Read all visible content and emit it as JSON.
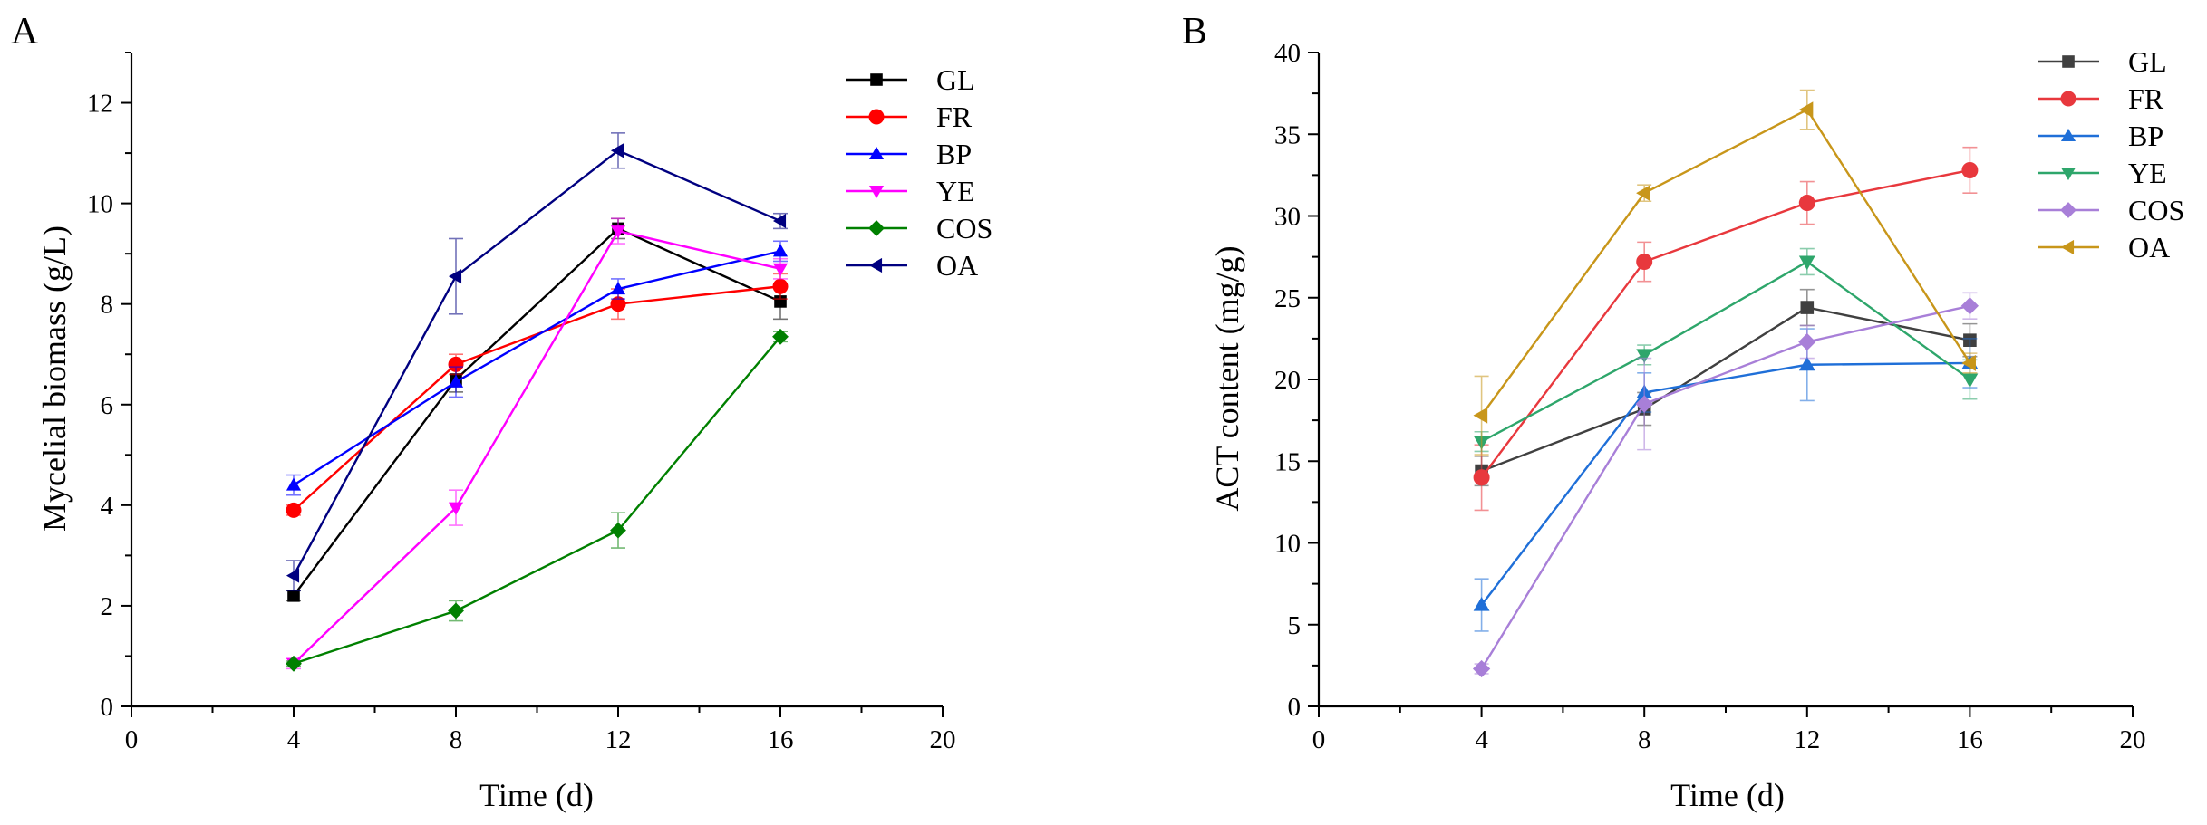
{
  "chart_data": [
    {
      "panel_label": "A",
      "type": "line",
      "xlabel": "Time (d)",
      "ylabel": "Mycelial biomass (g/L)",
      "xlim": [
        0,
        20
      ],
      "ylim": [
        0,
        13
      ],
      "xticks": [
        0,
        4,
        8,
        12,
        16,
        20
      ],
      "yticks": [
        0,
        2,
        4,
        6,
        8,
        10,
        12
      ],
      "x": [
        4,
        8,
        12,
        16
      ],
      "legend_position": "top-right",
      "series": [
        {
          "name": "GL",
          "color": "#000000",
          "marker": "square",
          "values": [
            2.2,
            6.5,
            9.5,
            8.05
          ],
          "errors": [
            0.1,
            0.25,
            0.2,
            0.35
          ]
        },
        {
          "name": "FR",
          "color": "#ff0000",
          "marker": "circle",
          "values": [
            3.9,
            6.8,
            8.0,
            8.35
          ],
          "errors": [
            0.1,
            0.2,
            0.3,
            0.25
          ]
        },
        {
          "name": "BP",
          "color": "#0000ff",
          "marker": "triangle-up",
          "values": [
            4.4,
            6.45,
            8.3,
            9.05
          ],
          "errors": [
            0.2,
            0.3,
            0.2,
            0.2
          ]
        },
        {
          "name": "YE",
          "color": "#ff00ff",
          "marker": "triangle-down",
          "values": [
            0.85,
            3.95,
            9.45,
            8.7
          ],
          "errors": [
            0.1,
            0.35,
            0.25,
            0.2
          ]
        },
        {
          "name": "COS",
          "color": "#008000",
          "marker": "diamond",
          "values": [
            0.85,
            1.9,
            3.5,
            7.35
          ],
          "errors": [
            0.05,
            0.2,
            0.35,
            0.1
          ]
        },
        {
          "name": "OA",
          "color": "#000080",
          "marker": "triangle-left",
          "values": [
            2.6,
            8.55,
            11.05,
            9.65
          ],
          "errors": [
            0.3,
            0.75,
            0.35,
            0.15
          ]
        }
      ]
    },
    {
      "panel_label": "B",
      "type": "line",
      "xlabel": "Time (d)",
      "ylabel": "ACT content (mg/g)",
      "xlim": [
        0,
        20
      ],
      "ylim": [
        0,
        40
      ],
      "xticks": [
        0,
        4,
        8,
        12,
        16,
        20
      ],
      "yticks": [
        0,
        5,
        10,
        15,
        20,
        25,
        30,
        35,
        40
      ],
      "x": [
        4,
        8,
        12,
        16
      ],
      "legend_position": "top-right",
      "series": [
        {
          "name": "GL",
          "color": "#404040",
          "marker": "square",
          "values": [
            14.4,
            18.2,
            24.4,
            22.4
          ],
          "errors": [
            0.9,
            1.0,
            1.1,
            1.0
          ]
        },
        {
          "name": "FR",
          "color": "#e8383d",
          "marker": "circle",
          "values": [
            14.0,
            27.2,
            30.8,
            32.8
          ],
          "errors": [
            2.0,
            1.2,
            1.3,
            1.4
          ]
        },
        {
          "name": "BP",
          "color": "#1f6fd8",
          "marker": "triangle-up",
          "values": [
            6.2,
            19.2,
            20.9,
            21.0
          ],
          "errors": [
            1.6,
            1.2,
            2.2,
            1.5
          ]
        },
        {
          "name": "YE",
          "color": "#2ea66b",
          "marker": "triangle-down",
          "values": [
            16.2,
            21.5,
            27.2,
            20.0
          ],
          "errors": [
            0.6,
            0.6,
            0.8,
            1.2
          ]
        },
        {
          "name": "COS",
          "color": "#a87fd8",
          "marker": "diamond",
          "values": [
            2.3,
            18.5,
            22.3,
            24.5
          ],
          "errors": [
            0.3,
            2.8,
            1.0,
            0.8
          ]
        },
        {
          "name": "OA",
          "color": "#c8961a",
          "marker": "triangle-left",
          "values": [
            17.8,
            31.4,
            36.5,
            21.0
          ],
          "errors": [
            2.4,
            0.5,
            1.2,
            0.6
          ]
        }
      ]
    }
  ]
}
